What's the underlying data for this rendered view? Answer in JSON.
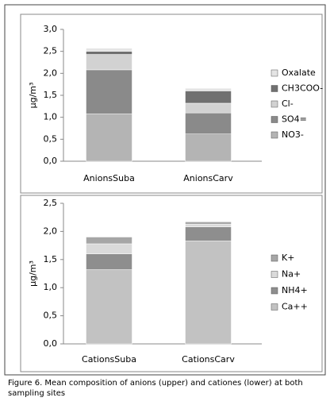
{
  "chart_data": [
    {
      "type": "stacked_bar",
      "y_label": "μg/m³",
      "categories": [
        "AnionsSuba",
        "AnionsCarv"
      ],
      "series": [
        {
          "name": "NO3-",
          "color": "#b4b4b4",
          "values": [
            1.08,
            0.62
          ]
        },
        {
          "name": "SO4=",
          "color": "#8a8a8a",
          "values": [
            1.0,
            0.48
          ]
        },
        {
          "name": "Cl-",
          "color": "#d2d2d2",
          "values": [
            0.35,
            0.22
          ]
        },
        {
          "name": "CH3COO-",
          "color": "#707070",
          "values": [
            0.07,
            0.28
          ]
        },
        {
          "name": "Oxalate",
          "color": "#e4e4e4",
          "values": [
            0.07,
            0.06
          ]
        }
      ],
      "ylim": [
        0,
        3
      ],
      "yticks": [
        {
          "value": 0,
          "label": "0,0"
        },
        {
          "value": 0.5,
          "label": "0,5"
        },
        {
          "value": 1,
          "label": "1,0"
        },
        {
          "value": 1.5,
          "label": "1,5"
        },
        {
          "value": 2,
          "label": "2,0"
        },
        {
          "value": 2.5,
          "label": "2,5"
        },
        {
          "value": 3,
          "label": "3,0"
        }
      ],
      "grid": false,
      "legend": "right"
    },
    {
      "type": "stacked_bar",
      "y_label": "μg/m³",
      "categories": [
        "CationsSuba",
        "CationsCarv"
      ],
      "series": [
        {
          "name": "Ca++",
          "color": "#c2c2c2",
          "values": [
            1.32,
            1.83
          ]
        },
        {
          "name": "NH4+",
          "color": "#8e8e8e",
          "values": [
            0.28,
            0.25
          ]
        },
        {
          "name": "Na+",
          "color": "#dadada",
          "values": [
            0.18,
            0.05
          ]
        },
        {
          "name": "K+",
          "color": "#a6a6a6",
          "values": [
            0.12,
            0.04
          ]
        }
      ],
      "ylim": [
        0,
        2.5
      ],
      "yticks": [
        {
          "value": 0,
          "label": "0,0"
        },
        {
          "value": 0.5,
          "label": "0,5"
        },
        {
          "value": 1,
          "label": "1,0"
        },
        {
          "value": 1.5,
          "label": "1,5"
        },
        {
          "value": 2,
          "label": "2,0"
        },
        {
          "value": 2.5,
          "label": "2,5"
        }
      ],
      "grid": false,
      "legend": "right"
    }
  ],
  "caption": "Figure 6. Mean composition of anions (upper) and cationes (lower) at both sampling sites"
}
